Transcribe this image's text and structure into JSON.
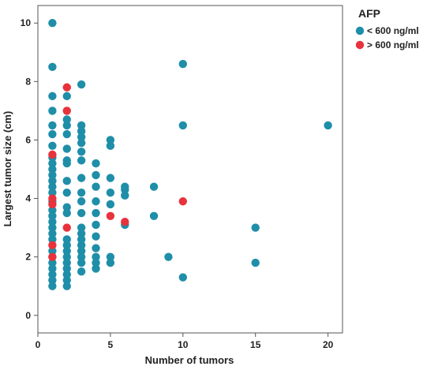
{
  "chart_data": {
    "type": "scatter",
    "xlabel": "Number of tumors",
    "ylabel": "Largest tumor size (cm)",
    "xlim": [
      0,
      21
    ],
    "ylim": [
      -0.6,
      10.6
    ],
    "x_ticks": [
      0,
      5,
      10,
      15,
      20
    ],
    "y_ticks": [
      0,
      2,
      4,
      6,
      8,
      10
    ],
    "grid": false,
    "legend": {
      "title": "AFP",
      "placement": "right"
    },
    "series": [
      {
        "name": "< 600 ng/ml",
        "color": "#1f8ea8",
        "points": [
          [
            1,
            10.0
          ],
          [
            1,
            8.5
          ],
          [
            1,
            7.5
          ],
          [
            1,
            7.0
          ],
          [
            1,
            6.5
          ],
          [
            1,
            6.2
          ],
          [
            1,
            5.8
          ],
          [
            1,
            5.4
          ],
          [
            1,
            5.2
          ],
          [
            1,
            5.0
          ],
          [
            1,
            4.8
          ],
          [
            1,
            4.6
          ],
          [
            1,
            4.4
          ],
          [
            1,
            4.2
          ],
          [
            1,
            3.9
          ],
          [
            1,
            3.6
          ],
          [
            1,
            3.4
          ],
          [
            1,
            3.2
          ],
          [
            1,
            3.0
          ],
          [
            1,
            2.8
          ],
          [
            1,
            2.6
          ],
          [
            1,
            2.2
          ],
          [
            1,
            2.0
          ],
          [
            1,
            1.8
          ],
          [
            1,
            1.6
          ],
          [
            1,
            1.4
          ],
          [
            1,
            1.2
          ],
          [
            1,
            1.0
          ],
          [
            2,
            7.5
          ],
          [
            2,
            6.7
          ],
          [
            2,
            6.5
          ],
          [
            2,
            6.2
          ],
          [
            2,
            5.7
          ],
          [
            2,
            5.3
          ],
          [
            2,
            5.2
          ],
          [
            2,
            4.6
          ],
          [
            2,
            4.2
          ],
          [
            2,
            3.7
          ],
          [
            2,
            3.5
          ],
          [
            2,
            2.6
          ],
          [
            2,
            2.4
          ],
          [
            2,
            2.2
          ],
          [
            2,
            2.0
          ],
          [
            2,
            1.8
          ],
          [
            2,
            1.6
          ],
          [
            2,
            1.4
          ],
          [
            2,
            1.2
          ],
          [
            2,
            1.0
          ],
          [
            3,
            7.9
          ],
          [
            3,
            6.5
          ],
          [
            3,
            6.3
          ],
          [
            3,
            6.1
          ],
          [
            3,
            5.9
          ],
          [
            3,
            5.6
          ],
          [
            3,
            5.3
          ],
          [
            3,
            4.7
          ],
          [
            3,
            4.2
          ],
          [
            3,
            3.9
          ],
          [
            3,
            3.5
          ],
          [
            3,
            3.0
          ],
          [
            3,
            2.8
          ],
          [
            3,
            2.6
          ],
          [
            3,
            2.4
          ],
          [
            3,
            2.2
          ],
          [
            3,
            2.0
          ],
          [
            3,
            1.8
          ],
          [
            3,
            1.5
          ],
          [
            4,
            5.2
          ],
          [
            4,
            4.8
          ],
          [
            4,
            4.4
          ],
          [
            4,
            3.9
          ],
          [
            4,
            3.5
          ],
          [
            4,
            3.1
          ],
          [
            4,
            2.7
          ],
          [
            4,
            2.3
          ],
          [
            4,
            2.0
          ],
          [
            4,
            1.8
          ],
          [
            4,
            1.6
          ],
          [
            5,
            6.0
          ],
          [
            5,
            5.8
          ],
          [
            5,
            4.7
          ],
          [
            5,
            4.2
          ],
          [
            5,
            3.8
          ],
          [
            5,
            2.0
          ],
          [
            5,
            1.8
          ],
          [
            6,
            4.4
          ],
          [
            6,
            4.3
          ],
          [
            6,
            4.1
          ],
          [
            6,
            3.1
          ],
          [
            8,
            4.4
          ],
          [
            8,
            3.4
          ],
          [
            9,
            2.0
          ],
          [
            10,
            8.6
          ],
          [
            10,
            6.5
          ],
          [
            10,
            1.3
          ],
          [
            15,
            3.0
          ],
          [
            15,
            1.8
          ],
          [
            20,
            6.5
          ]
        ]
      },
      {
        "name": "> 600 ng/ml",
        "color": "#e8323c",
        "points": [
          [
            1,
            5.5
          ],
          [
            1,
            4.0
          ],
          [
            1,
            3.8
          ],
          [
            1,
            2.4
          ],
          [
            1,
            2.0
          ],
          [
            2,
            7.8
          ],
          [
            2,
            7.0
          ],
          [
            2,
            3.0
          ],
          [
            5,
            3.4
          ],
          [
            6,
            3.2
          ],
          [
            10,
            3.9
          ]
        ]
      }
    ]
  }
}
